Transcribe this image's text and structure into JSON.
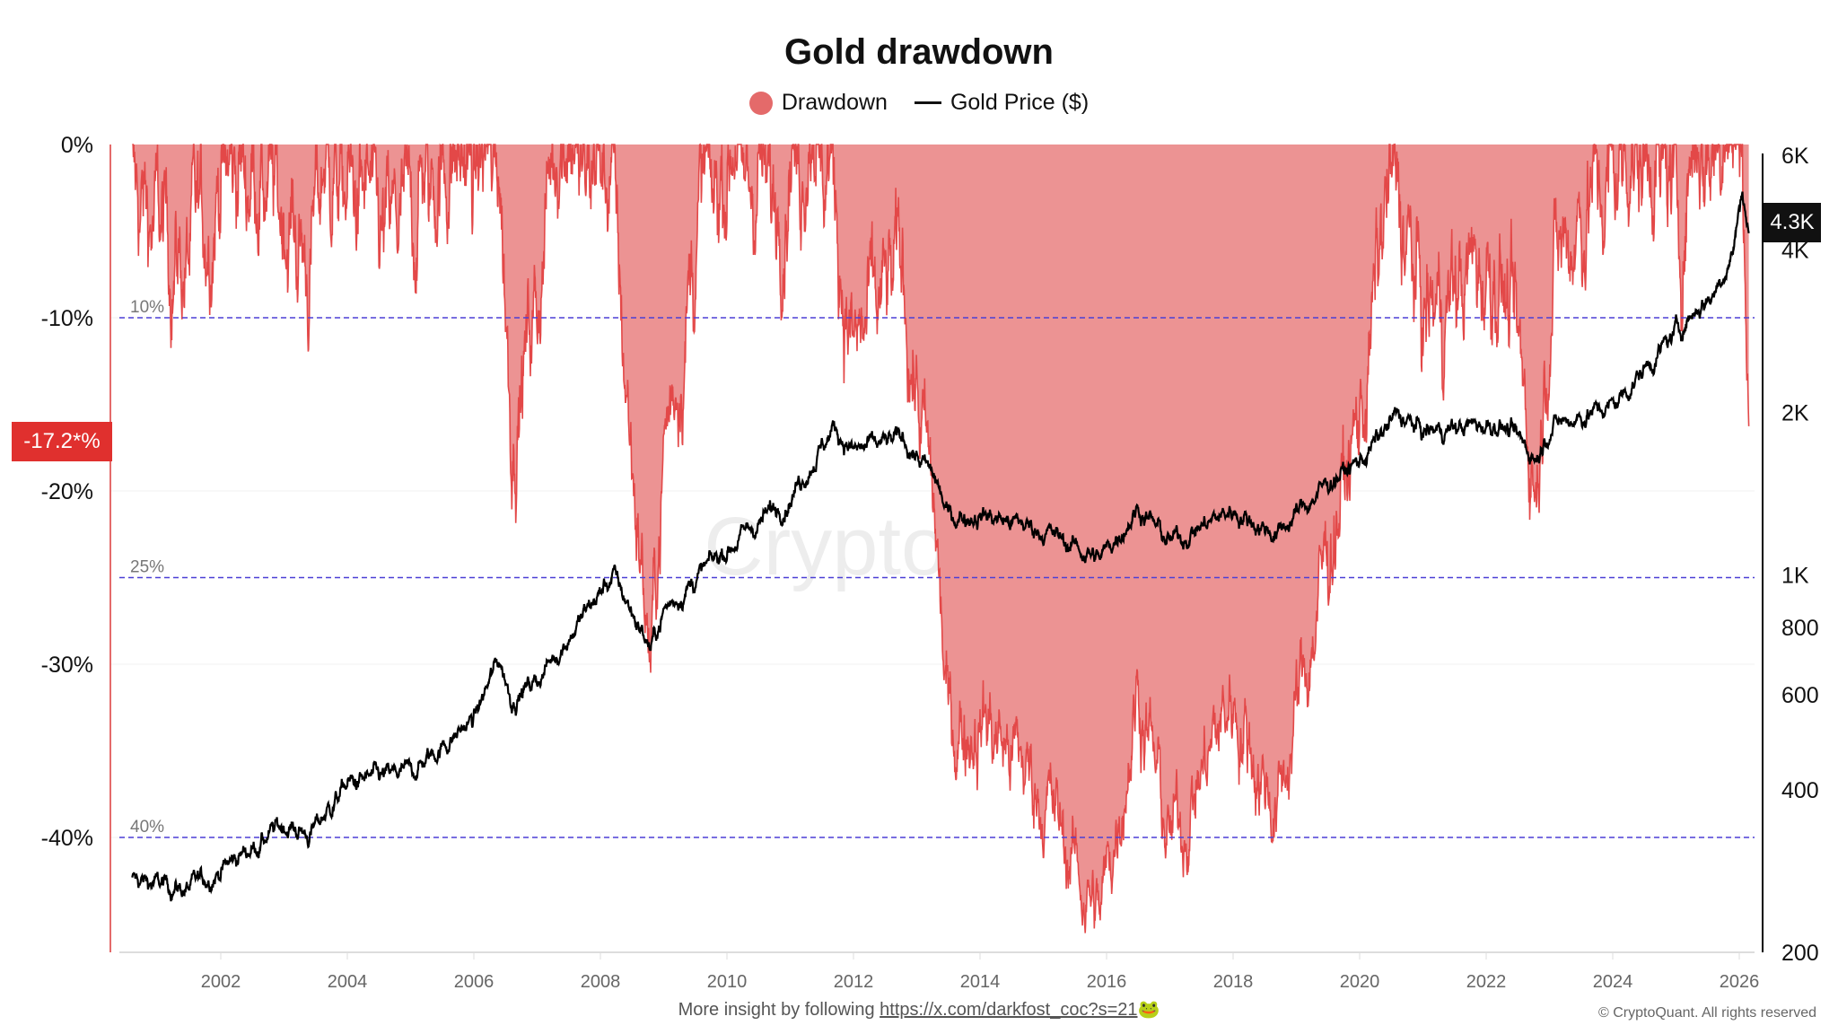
{
  "title": "Gold drawdown",
  "legend": {
    "drawdown": "Drawdown",
    "price": "Gold Price ($)"
  },
  "colors": {
    "drawdown_fill": "#ec9393",
    "drawdown_line": "#e34848",
    "price": "#000000",
    "guide": "#4b3fd6",
    "badge_left": "#e0302e",
    "badge_right": "#111111"
  },
  "badges": {
    "drawdown_current": "-17.2*%",
    "price_current": "4.3K"
  },
  "watermark": "CryptoQuant",
  "footer": {
    "prefix": "More insight by following",
    "link": "https://x.com/darkfost_coc?s=21",
    "emoji": "🐸",
    "copyright": "© CryptoQuant. All rights reserved"
  },
  "chart_data": {
    "type": "area+line",
    "title": "Gold drawdown",
    "x_ticks": [
      "2002",
      "2004",
      "2006",
      "2008",
      "2010",
      "2012",
      "2014",
      "2016",
      "2018",
      "2020",
      "2022",
      "2024",
      "2026"
    ],
    "y_left": {
      "label": "Drawdown",
      "range": [
        -46.6,
        0
      ],
      "ticks": [
        {
          "v": 0,
          "t": "0%"
        },
        {
          "v": -10,
          "t": "-10%"
        },
        {
          "v": -20,
          "t": "-20%"
        },
        {
          "v": -30,
          "t": "-30%"
        },
        {
          "v": -40,
          "t": "-40%"
        }
      ]
    },
    "y_right": {
      "label": "Gold Price ($)",
      "scale": "log",
      "range": [
        200,
        6300
      ],
      "ticks": [
        {
          "v": 6000,
          "t": "6K"
        },
        {
          "v": 4000,
          "t": "4K"
        },
        {
          "v": 2000,
          "t": "2K"
        },
        {
          "v": 1000,
          "t": "1K"
        },
        {
          "v": 800,
          "t": "800"
        },
        {
          "v": 600,
          "t": "600"
        },
        {
          "v": 400,
          "t": "400"
        },
        {
          "v": 200,
          "t": "200"
        }
      ]
    },
    "guides": [
      {
        "v": -10,
        "t": "10%"
      },
      {
        "v": -25,
        "t": "25%"
      },
      {
        "v": -40,
        "t": "40%"
      }
    ],
    "price_series": {
      "x": [
        2000.6,
        2001.5,
        2002.0,
        2003.0,
        2003.4,
        2004.0,
        2005.0,
        2006.0,
        2006.4,
        2006.6,
        2007.0,
        2008.2,
        2008.8,
        2009.0,
        2010.0,
        2011.0,
        2011.7,
        2012.0,
        2012.8,
        2013.3,
        2013.5,
        2014.0,
        2015.0,
        2015.9,
        2016.5,
        2017.0,
        2018.0,
        2018.7,
        2019.0,
        2019.6,
        2020.0,
        2020.6,
        2021.0,
        2022.2,
        2022.8,
        2023.0,
        2024.0,
        2024.8,
        2025.3,
        2025.6,
        2025.9,
        2026.05,
        2026.15
      ],
      "y": [
        272,
        262,
        285,
        345,
        330,
        410,
        430,
        540,
        700,
        590,
        640,
        1000,
        730,
        860,
        1120,
        1400,
        1880,
        1700,
        1780,
        1500,
        1280,
        1300,
        1210,
        1070,
        1340,
        1150,
        1320,
        1190,
        1300,
        1520,
        1620,
        1980,
        1840,
        1920,
        1650,
        1890,
        2060,
        2640,
        3100,
        3330,
        4000,
        5200,
        4300
      ]
    }
  }
}
